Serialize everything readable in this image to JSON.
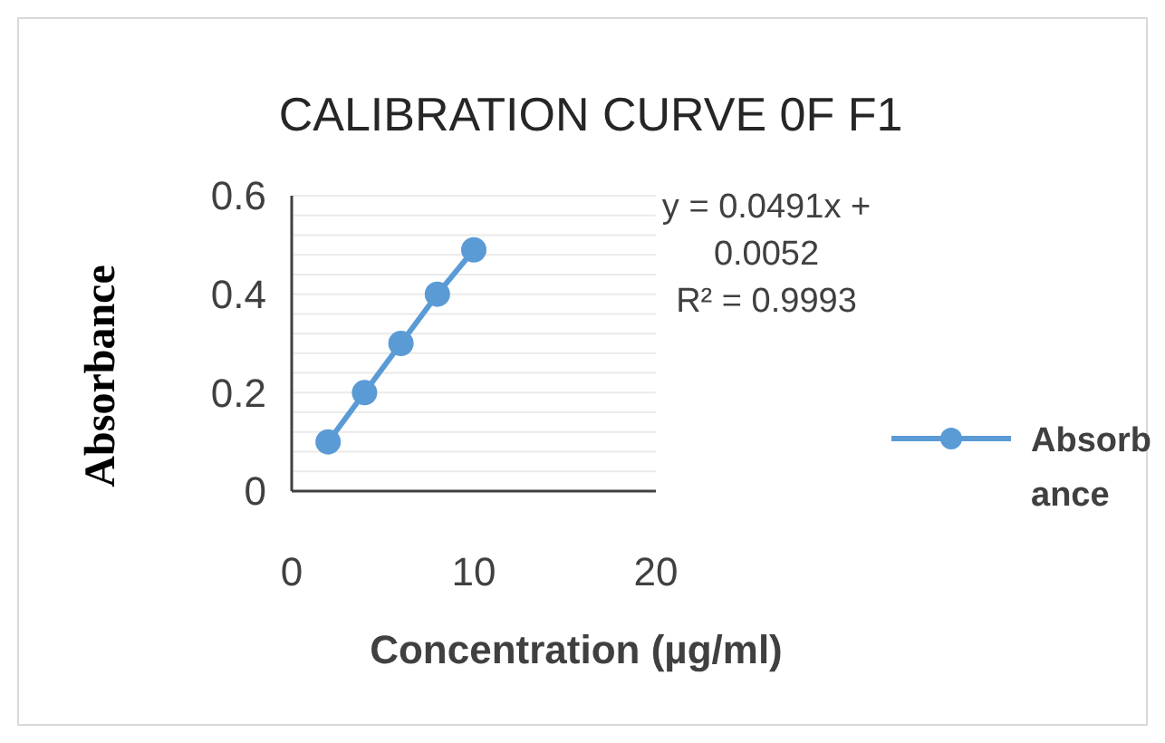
{
  "chart_data": {
    "type": "line",
    "title": "CALIBRATION CURVE 0F F1",
    "xlabel": "Concentration (µg/ml)",
    "ylabel": "Absorbance",
    "x": [
      2,
      4,
      6,
      8,
      10
    ],
    "series": [
      {
        "name": "Absorbance",
        "color": "#5b9bd5",
        "values": [
          0.1,
          0.2,
          0.3,
          0.4,
          0.49
        ]
      }
    ],
    "xlim": [
      0,
      20
    ],
    "xticks": [
      0,
      10,
      20
    ],
    "ylim": [
      0,
      0.6
    ],
    "yticks": [
      0,
      {
        "value": 0.04,
        "label": null
      },
      {
        "value": 0.08,
        "label": null
      },
      {
        "value": 0.12,
        "label": null
      },
      {
        "value": 0.16,
        "label": null
      },
      {
        "value": 0.2,
        "label": "0.2"
      },
      {
        "value": 0.24,
        "label": null
      },
      {
        "value": 0.28,
        "label": null
      },
      {
        "value": 0.32,
        "label": null
      },
      {
        "value": 0.36,
        "label": null
      },
      {
        "value": 0.4,
        "label": "0.4"
      },
      {
        "value": 0.44,
        "label": null
      },
      {
        "value": 0.48,
        "label": null
      },
      {
        "value": 0.52,
        "label": null
      },
      {
        "value": 0.56,
        "label": null
      },
      {
        "value": 0.6,
        "label": "0.6"
      }
    ],
    "grid": "y",
    "legend": "right",
    "marker": "circle",
    "line_style": "solid",
    "annotations": [
      "y = 0.0491x + 0.0052",
      "R² = 0.9993"
    ]
  }
}
